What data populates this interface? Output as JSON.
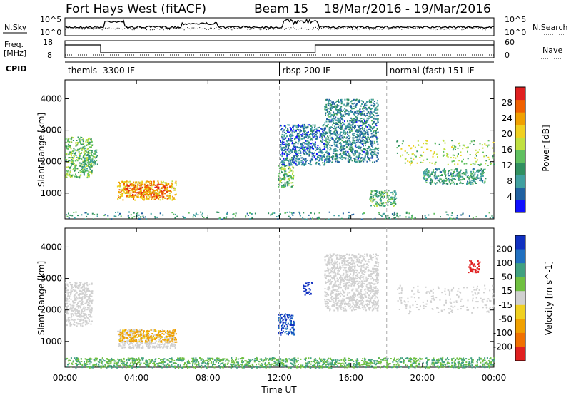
{
  "header": {
    "station": "Fort Hays West (fitACF)",
    "beam": "Beam 15",
    "date_range": "18/Mar/2016 - 19/Mar/2016"
  },
  "top_panels": {
    "nsky_label": "N.Sky",
    "nsky_ticks": [
      "10^5",
      "10^0"
    ],
    "nsearch_label": "N.Search",
    "nsearch_ticks": [
      "10^5",
      "10^0"
    ],
    "freq_label_1": "Freq.",
    "freq_label_2": "[MHz]",
    "freq_ticks": [
      "18",
      "8"
    ],
    "nave_label": "Nave",
    "nave_ticks": [
      "60",
      "0"
    ],
    "cpid_label": "CPID"
  },
  "cpid_segments": [
    {
      "start_hour": 0,
      "label": "themis -3300 IF"
    },
    {
      "start_hour": 12,
      "label": "rbsp 200 IF"
    },
    {
      "start_hour": 18,
      "label": "normal (fast) 151 IF"
    }
  ],
  "colors": {
    "power_scale": [
      "#1010ff",
      "#2060a0",
      "#40a0a0",
      "#309060",
      "#60c060",
      "#c0e040",
      "#f0d020",
      "#f0a000",
      "#f06000",
      "#e02020"
    ],
    "velocity_scale": [
      "#1030c0",
      "#2070c0",
      "#40a080",
      "#70c040",
      "#d0d0d0",
      "#f0d020",
      "#f0a000",
      "#f07000",
      "#e02020"
    ]
  },
  "chart_data": [
    {
      "type": "heatmap",
      "title": "Power",
      "ylabel": "Slant Range [km]",
      "xlabel": "",
      "x_range_hours": [
        0,
        24
      ],
      "y_range_km": [
        180,
        4600
      ],
      "y_ticks": [
        "1000",
        "2000",
        "3000",
        "4000"
      ],
      "colorbar_label": "Power [dB]",
      "colorbar_ticks": [
        "4",
        "8",
        "12",
        "16",
        "20",
        "24",
        "28"
      ],
      "colorbar_range": [
        0,
        32
      ],
      "regions": [
        {
          "t0": 0.0,
          "t1": 1.5,
          "r0": 1500,
          "r1": 2800,
          "value": 14
        },
        {
          "t0": 1.0,
          "t1": 1.8,
          "r0": 1900,
          "r1": 2400,
          "value": 12
        },
        {
          "t0": 2.9,
          "t1": 6.2,
          "r0": 800,
          "r1": 1400,
          "value": 22
        },
        {
          "t0": 3.3,
          "t1": 5.7,
          "r0": 900,
          "r1": 1300,
          "value": 27
        },
        {
          "t0": 11.9,
          "t1": 12.8,
          "r0": 1200,
          "r1": 1900,
          "value": 14
        },
        {
          "t0": 12.0,
          "t1": 14.5,
          "r0": 1900,
          "r1": 3200,
          "value": 6
        },
        {
          "t0": 14.5,
          "t1": 17.5,
          "r0": 2000,
          "r1": 4000,
          "value": 8
        },
        {
          "t0": 17.0,
          "t1": 18.5,
          "r0": 600,
          "r1": 1100,
          "value": 12
        },
        {
          "t0": 18.5,
          "t1": 24.0,
          "r0": 1900,
          "r1": 2700,
          "value": 16
        },
        {
          "t0": 20.0,
          "t1": 23.5,
          "r0": 1300,
          "r1": 1800,
          "value": 10
        },
        {
          "t0": 0.0,
          "t1": 24.0,
          "r0": 180,
          "r1": 420,
          "value": 10
        }
      ]
    },
    {
      "type": "heatmap",
      "title": "Velocity",
      "ylabel": "Slant Range [km]",
      "xlabel": "Time UT",
      "x_range_hours": [
        0,
        24
      ],
      "x_ticks": [
        "00:00",
        "04:00",
        "08:00",
        "12:00",
        "16:00",
        "20:00",
        "00:00"
      ],
      "y_range_km": [
        180,
        4600
      ],
      "y_ticks": [
        "1000",
        "2000",
        "3000",
        "4000"
      ],
      "colorbar_label": "Velocity [m s^-1]",
      "colorbar_ticks": [
        "200",
        "100",
        "50",
        "15",
        "-15",
        "-50",
        "-100",
        "-200"
      ],
      "regions": [
        {
          "t0": 0.0,
          "t1": 1.5,
          "r0": 1500,
          "r1": 2900,
          "value": 0
        },
        {
          "t0": 2.9,
          "t1": 6.2,
          "r0": 800,
          "r1": 1400,
          "value": 0
        },
        {
          "t0": 3.0,
          "t1": 6.2,
          "r0": 1000,
          "r1": 1400,
          "value": -60
        },
        {
          "t0": 11.9,
          "t1": 12.8,
          "r0": 1200,
          "r1": 1900,
          "value": 150
        },
        {
          "t0": 13.3,
          "t1": 13.8,
          "r0": 2500,
          "r1": 2900,
          "value": 200
        },
        {
          "t0": 14.5,
          "t1": 17.5,
          "r0": 2000,
          "r1": 3800,
          "value": 0
        },
        {
          "t0": 18.5,
          "t1": 24.0,
          "r0": 1900,
          "r1": 2800,
          "value": 0
        },
        {
          "t0": 22.5,
          "t1": 23.2,
          "r0": 3200,
          "r1": 3600,
          "value": -200
        },
        {
          "t0": 0.0,
          "t1": 24.0,
          "r0": 180,
          "r1": 500,
          "value": 30
        }
      ]
    }
  ]
}
